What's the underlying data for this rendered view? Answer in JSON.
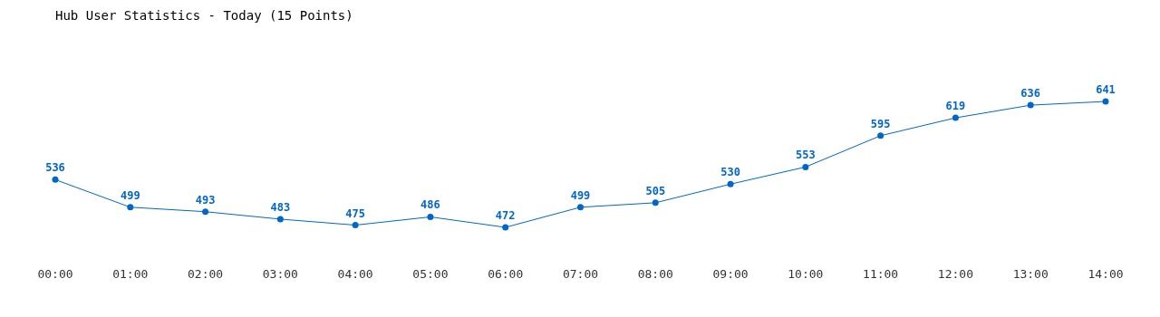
{
  "chart_data": {
    "type": "line",
    "title": "Hub User Statistics - Today (15 Points)",
    "categories": [
      "00:00",
      "01:00",
      "02:00",
      "03:00",
      "04:00",
      "05:00",
      "06:00",
      "07:00",
      "08:00",
      "09:00",
      "10:00",
      "11:00",
      "12:00",
      "13:00",
      "14:00"
    ],
    "series": [
      {
        "color": "#0066cc",
        "values": [
          536,
          499,
          493,
          483,
          475,
          486,
          472,
          499,
          505,
          530,
          553,
          595,
          619,
          636,
          641
        ]
      }
    ],
    "data_labels": true,
    "marker": "circle"
  }
}
